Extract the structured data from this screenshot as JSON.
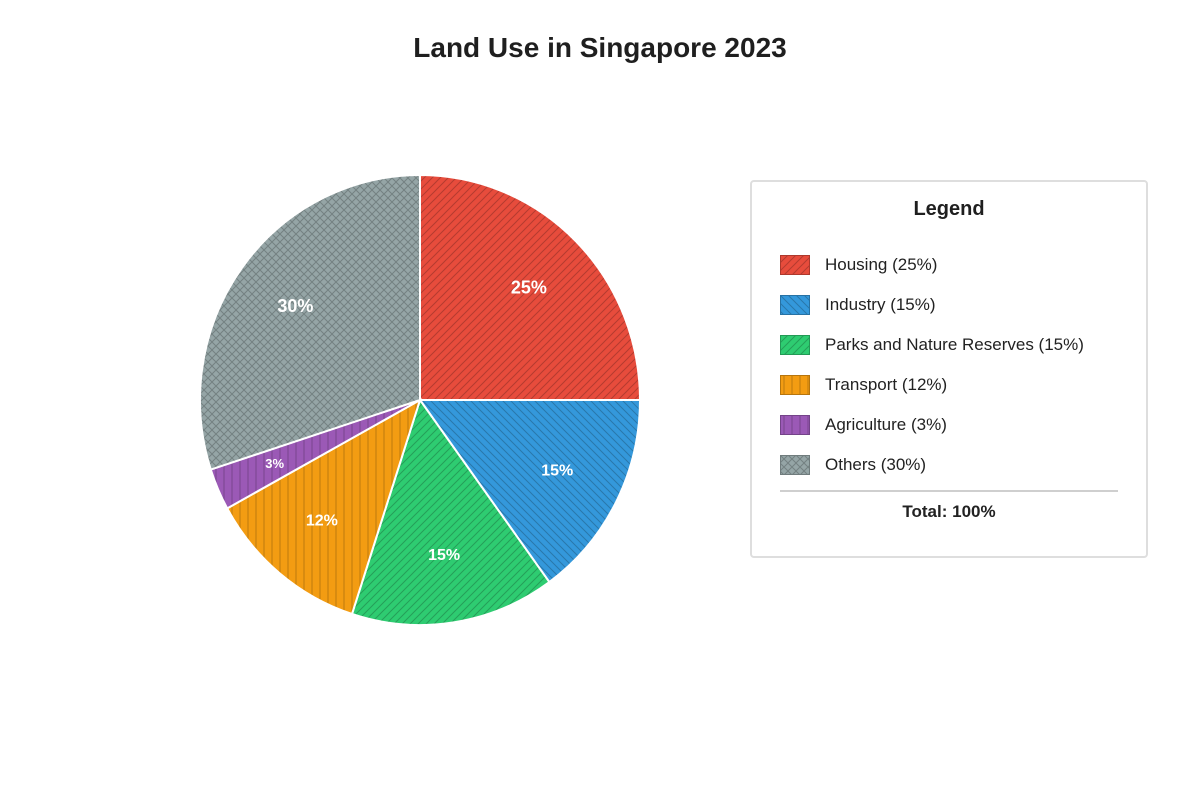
{
  "chart_data": {
    "type": "pie",
    "title": "Land Use in Singapore 2023",
    "slices": [
      {
        "label": "Housing",
        "value": 25,
        "display": "25%",
        "legend": "Housing (25%)",
        "color": "#e74c3c",
        "pattern": "diag-right"
      },
      {
        "label": "Industry",
        "value": 15,
        "display": "15%",
        "legend": "Industry (15%)",
        "color": "#3498db",
        "pattern": "diag-left"
      },
      {
        "label": "Parks and Nature Reserves",
        "value": 15,
        "display": "15%",
        "legend": "Parks and Nature Reserves (15%)",
        "color": "#2ecc71",
        "pattern": "diag-right"
      },
      {
        "label": "Transport",
        "value": 12,
        "display": "12%",
        "legend": "Transport (12%)",
        "color": "#f39c12",
        "pattern": "vertical"
      },
      {
        "label": "Agriculture",
        "value": 3,
        "display": "3%",
        "legend": "Agriculture (3%)",
        "color": "#9b59b6",
        "pattern": "vertical"
      },
      {
        "label": "Others",
        "value": 30,
        "display": "30%",
        "legend": "Others (30%)",
        "color": "#95a5a6",
        "pattern": "cross"
      }
    ],
    "legend": {
      "title": "Legend",
      "total": "Total: 100%",
      "position": "right"
    }
  }
}
